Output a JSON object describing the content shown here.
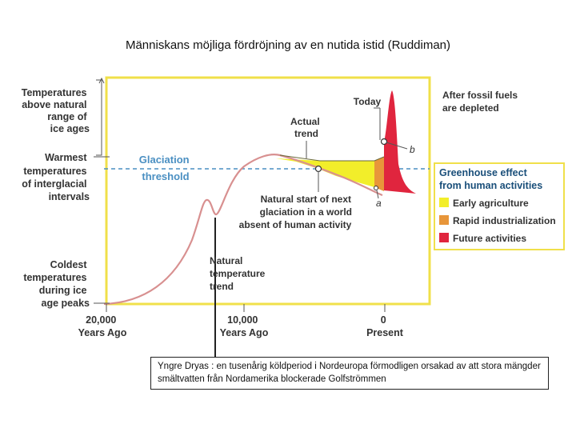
{
  "title": "Människans möjliga fördröjning av en nutida istid (Ruddiman)",
  "y_axis_labels": {
    "above_natural": [
      "Temperatures",
      "above natural",
      "range of",
      "ice ages"
    ],
    "warmest": [
      "Warmest",
      "temperatures",
      "of interglacial",
      "intervals"
    ],
    "coldest": [
      "Coldest",
      "temperatures",
      "during ice",
      "age peaks"
    ]
  },
  "x_axis_labels": {
    "left": [
      "20,000",
      "Years Ago"
    ],
    "middle": [
      "10,000",
      "Years Ago"
    ],
    "right": [
      "0",
      "Present"
    ]
  },
  "annotations": {
    "glaciation_threshold": [
      "Glaciation",
      "threshold"
    ],
    "actual_trend": [
      "Actual",
      "trend"
    ],
    "today": "Today",
    "after_fossil_fuels": [
      "After fossil fuels",
      "are depleted"
    ],
    "b": "b",
    "a": "a",
    "natural_start": [
      "Natural start of next",
      "glaciation in a world",
      "absent of human activity"
    ],
    "natural_trend": [
      "Natural",
      "temperature",
      "trend"
    ]
  },
  "legend": {
    "title": [
      "Greenhouse effect",
      "from human activities"
    ],
    "items": [
      {
        "label": "Early agriculture",
        "color": "#f2ee2a"
      },
      {
        "label": "Rapid industrialization",
        "color": "#e8963a"
      },
      {
        "label": "Future activities",
        "color": "#e0253e"
      }
    ]
  },
  "colors": {
    "frame": "#f0e04a",
    "threshold": "#4a8fc2",
    "curve": "#d89090"
  },
  "caption": "Yngre Dryas : en tusenårig köldperiod i Nordeuropa förmodligen orsakad av att stora mängder smältvatten från Nordamerika blockerade Golfströmmen"
}
